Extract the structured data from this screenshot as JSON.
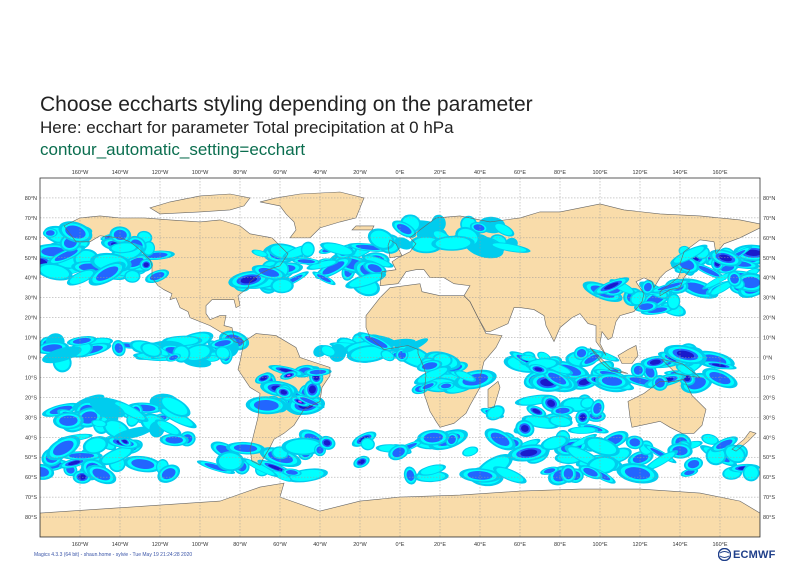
{
  "titles": {
    "line1": "Choose eccharts styling depending on the parameter",
    "line2": "Here: ecchart for parameter Total precipitation at  0 hPa",
    "line3": "contour_automatic_setting=ecchart"
  },
  "map": {
    "projection": "cylindrical",
    "lon_range": [
      -180,
      180
    ],
    "lat_range": [
      -90,
      90
    ],
    "grid_lon_step": 20,
    "grid_lat_step": 10,
    "lon_labels": [
      "160°W",
      "140°W",
      "120°W",
      "100°W",
      "80°W",
      "60°W",
      "40°W",
      "20°W",
      "0°E",
      "20°E",
      "40°E",
      "60°E",
      "80°E",
      "100°E",
      "120°E",
      "140°E",
      "160°E"
    ],
    "lat_labels": [
      "80°N",
      "70°N",
      "60°N",
      "50°N",
      "40°N",
      "30°N",
      "20°N",
      "10°N",
      "0°N",
      "10°S",
      "20°S",
      "30°S",
      "40°S",
      "50°S",
      "60°S",
      "70°S",
      "80°S"
    ],
    "colors": {
      "land": "#f9dcaa",
      "ocean": "#ffffff",
      "coast": "#666666",
      "grid": "#999999",
      "shade_levels": [
        "#00ccee",
        "#00ffff",
        "#2266ff",
        "#1a1acc",
        "#ee44ee"
      ]
    }
  },
  "footer": "Magics 4.3.3 (64 bit) - shaun.home - sylvie - Tue May 19 21:24:28 2020",
  "logo": {
    "text": "ECMWF",
    "icon": "ecmwf-logo-icon"
  }
}
